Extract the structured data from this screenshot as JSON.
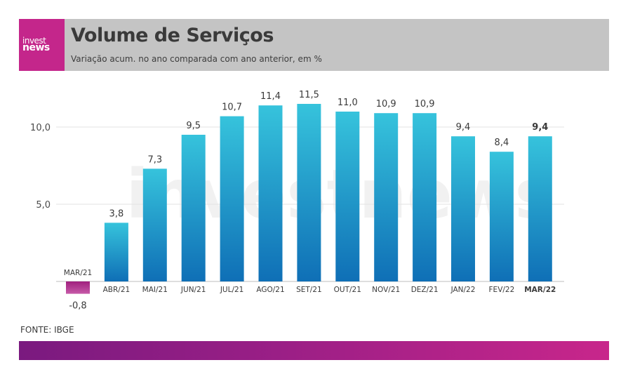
{
  "header": {
    "logo_top": "invest",
    "logo_bottom": "news",
    "title": "Volume de Serviços",
    "subtitle": "Variação acum. no ano comparada com ano anterior, em %"
  },
  "watermark": "investnews",
  "source": "FONTE: IBGE",
  "colors": {
    "bar_top": "#36c3dc",
    "bar_bottom": "#0f6fb6",
    "negative_bar_top": "#a0207e",
    "negative_bar_bottom": "#c65aa8",
    "header_bg": "#c4c4c4",
    "logo_bg": "#c4268b"
  },
  "chart_data": {
    "type": "bar",
    "categories": [
      "MAR/21",
      "ABR/21",
      "MAI/21",
      "JUN/21",
      "JUL/21",
      "AGO/21",
      "SET/21",
      "OUT/21",
      "NOV/21",
      "DEZ/21",
      "JAN/22",
      "FEV/22",
      "MAR/22"
    ],
    "values": [
      -0.8,
      3.8,
      7.3,
      9.5,
      10.7,
      11.4,
      11.5,
      11.0,
      10.9,
      10.9,
      9.4,
      8.4,
      9.4
    ],
    "value_labels": [
      "-0,8",
      "3,8",
      "7,3",
      "9,5",
      "10,7",
      "11,4",
      "11,5",
      "11,0",
      "10,9",
      "10,9",
      "9,4",
      "8,4",
      "9,4"
    ],
    "yticks": [
      5.0,
      10.0
    ],
    "ytick_labels": [
      "5,0",
      "10,0"
    ],
    "ylim": [
      -0.8,
      12.5
    ],
    "grid": true,
    "highlight_last": true,
    "title": "Volume de Serviços",
    "xlabel": "",
    "ylabel": ""
  }
}
